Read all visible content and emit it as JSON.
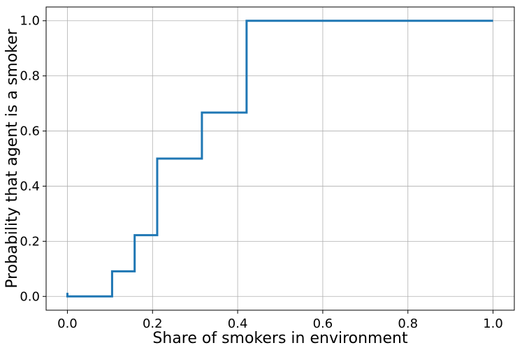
{
  "chart_data": {
    "type": "line",
    "step": true,
    "title": "",
    "xlabel": "Share of smokers in environment",
    "ylabel": "Probability that agent is a smoker",
    "xlim": [
      -0.05,
      1.05
    ],
    "ylim": [
      -0.05,
      1.05
    ],
    "grid": true,
    "line_color": "#1f77b4",
    "x_ticks": [
      0.0,
      0.2,
      0.4,
      0.6,
      0.8,
      1.0
    ],
    "x_tick_labels": [
      "0.0",
      "0.2",
      "0.4",
      "0.6",
      "0.8",
      "1.0"
    ],
    "y_ticks": [
      0.0,
      0.2,
      0.4,
      0.6,
      0.8,
      1.0
    ],
    "y_tick_labels": [
      "0.0",
      "0.2",
      "0.4",
      "0.6",
      "0.8",
      "1.0"
    ],
    "series": [
      {
        "points": [
          {
            "x": 0.0,
            "y": 0.013
          },
          {
            "x": 0.0,
            "y": 0.0
          },
          {
            "x": 0.105,
            "y": 0.0
          },
          {
            "x": 0.105,
            "y": 0.091
          },
          {
            "x": 0.158,
            "y": 0.091
          },
          {
            "x": 0.158,
            "y": 0.222
          },
          {
            "x": 0.211,
            "y": 0.222
          },
          {
            "x": 0.211,
            "y": 0.5
          },
          {
            "x": 0.316,
            "y": 0.5
          },
          {
            "x": 0.316,
            "y": 0.667
          },
          {
            "x": 0.421,
            "y": 0.667
          },
          {
            "x": 0.421,
            "y": 1.0
          },
          {
            "x": 1.0,
            "y": 1.0
          }
        ]
      }
    ]
  }
}
